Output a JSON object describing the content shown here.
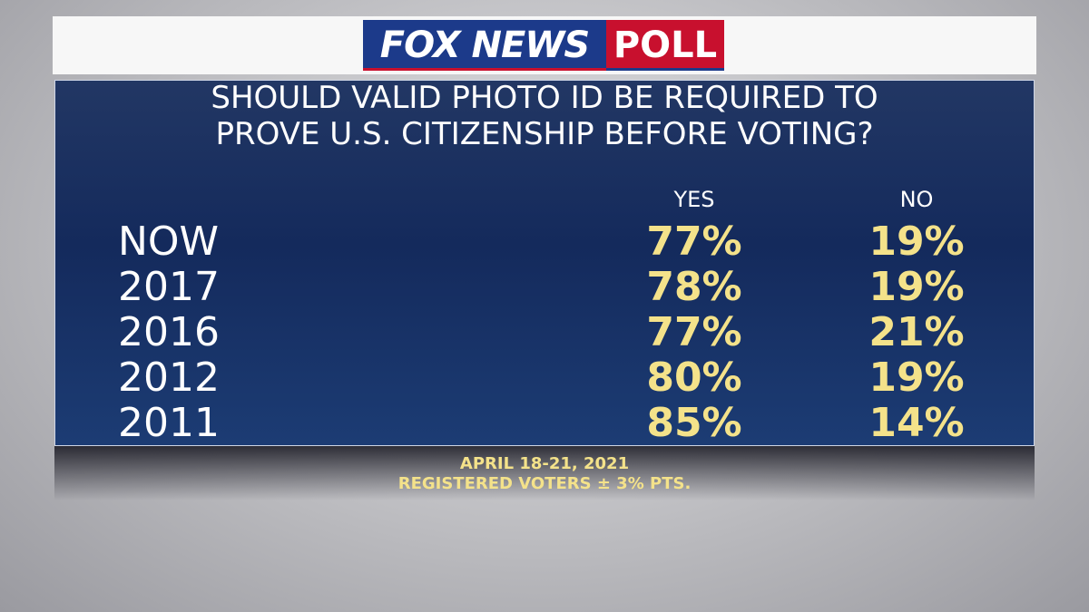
{
  "header": {
    "brand": "FOX NEWS",
    "badge": "POLL"
  },
  "title": {
    "line1": "SHOULD VALID PHOTO ID BE REQUIRED TO",
    "line2": "PROVE U.S. CITIZENSHIP BEFORE VOTING?"
  },
  "table": {
    "columns": [
      "YES",
      "NO"
    ],
    "rows": [
      [
        "NOW",
        "77%",
        "19%"
      ],
      [
        "2017",
        "78%",
        "19%"
      ],
      [
        "2016",
        "77%",
        "21%"
      ],
      [
        "2012",
        "80%",
        "19%"
      ],
      [
        "2011",
        "85%",
        "14%"
      ]
    ]
  },
  "footer": {
    "line1": "APRIL 18-21, 2021",
    "line2": "REGISTERED VOTERS ± 3% PTS."
  }
}
